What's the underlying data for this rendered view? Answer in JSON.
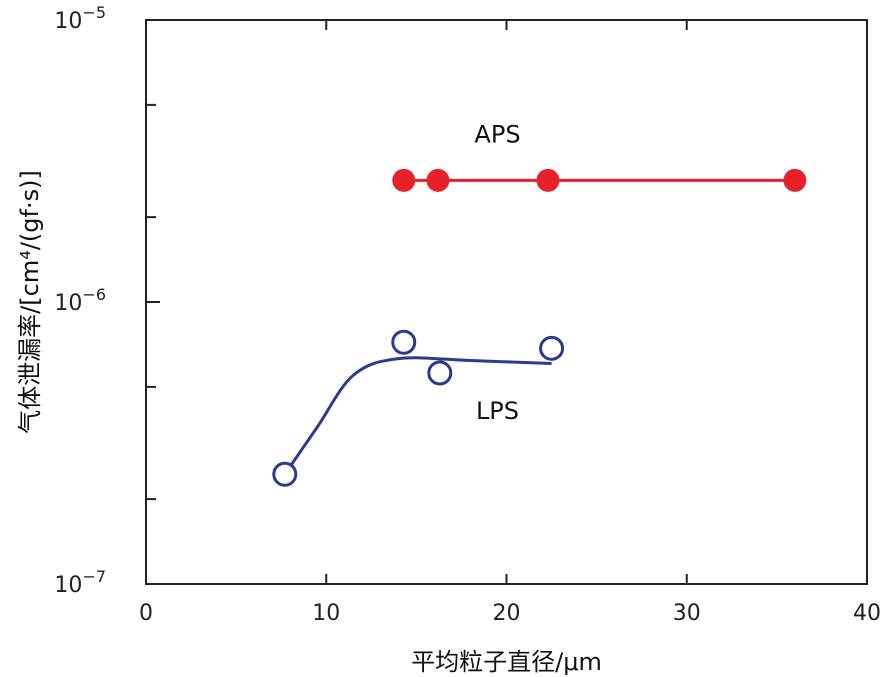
{
  "chart_data": {
    "type": "scatter",
    "title": "",
    "xlabel": "平均粒子直径/μm",
    "ylabel": "气体泄漏率/[cm⁴/(gf·s)]",
    "xlim": [
      0,
      40
    ],
    "ylim": [
      1e-07,
      1e-05
    ],
    "yscale": "log",
    "grid": false,
    "x_ticks": [
      "0",
      "10",
      "20",
      "30",
      "40"
    ],
    "y_ticks": [
      {
        "base": "10",
        "exp": "−7"
      },
      {
        "base": "10",
        "exp": "−6"
      },
      {
        "base": "10",
        "exp": "−5"
      }
    ],
    "series": [
      {
        "name": "APS",
        "color": "#e8202a",
        "marker": "filled-circle",
        "line": "straight",
        "x": [
          14.3,
          16.2,
          22.3,
          36.0
        ],
        "y": [
          2.7e-06,
          2.7e-06,
          2.7e-06,
          2.7e-06
        ]
      },
      {
        "name": "LPS",
        "color": "#2b3a8f",
        "marker": "open-circle",
        "line": "smooth fit",
        "x": [
          7.7,
          14.3,
          16.3,
          22.5
        ],
        "y": [
          2.45e-07,
          7.2e-07,
          5.6e-07,
          6.85e-07
        ],
        "fit_x": [
          7.7,
          9.5,
          11.5,
          14.0,
          18.0,
          22.5
        ],
        "fit_y": [
          2.45e-07,
          3.6e-07,
          5.5e-07,
          6.3e-07,
          6.2e-07,
          6.05e-07
        ]
      }
    ]
  }
}
